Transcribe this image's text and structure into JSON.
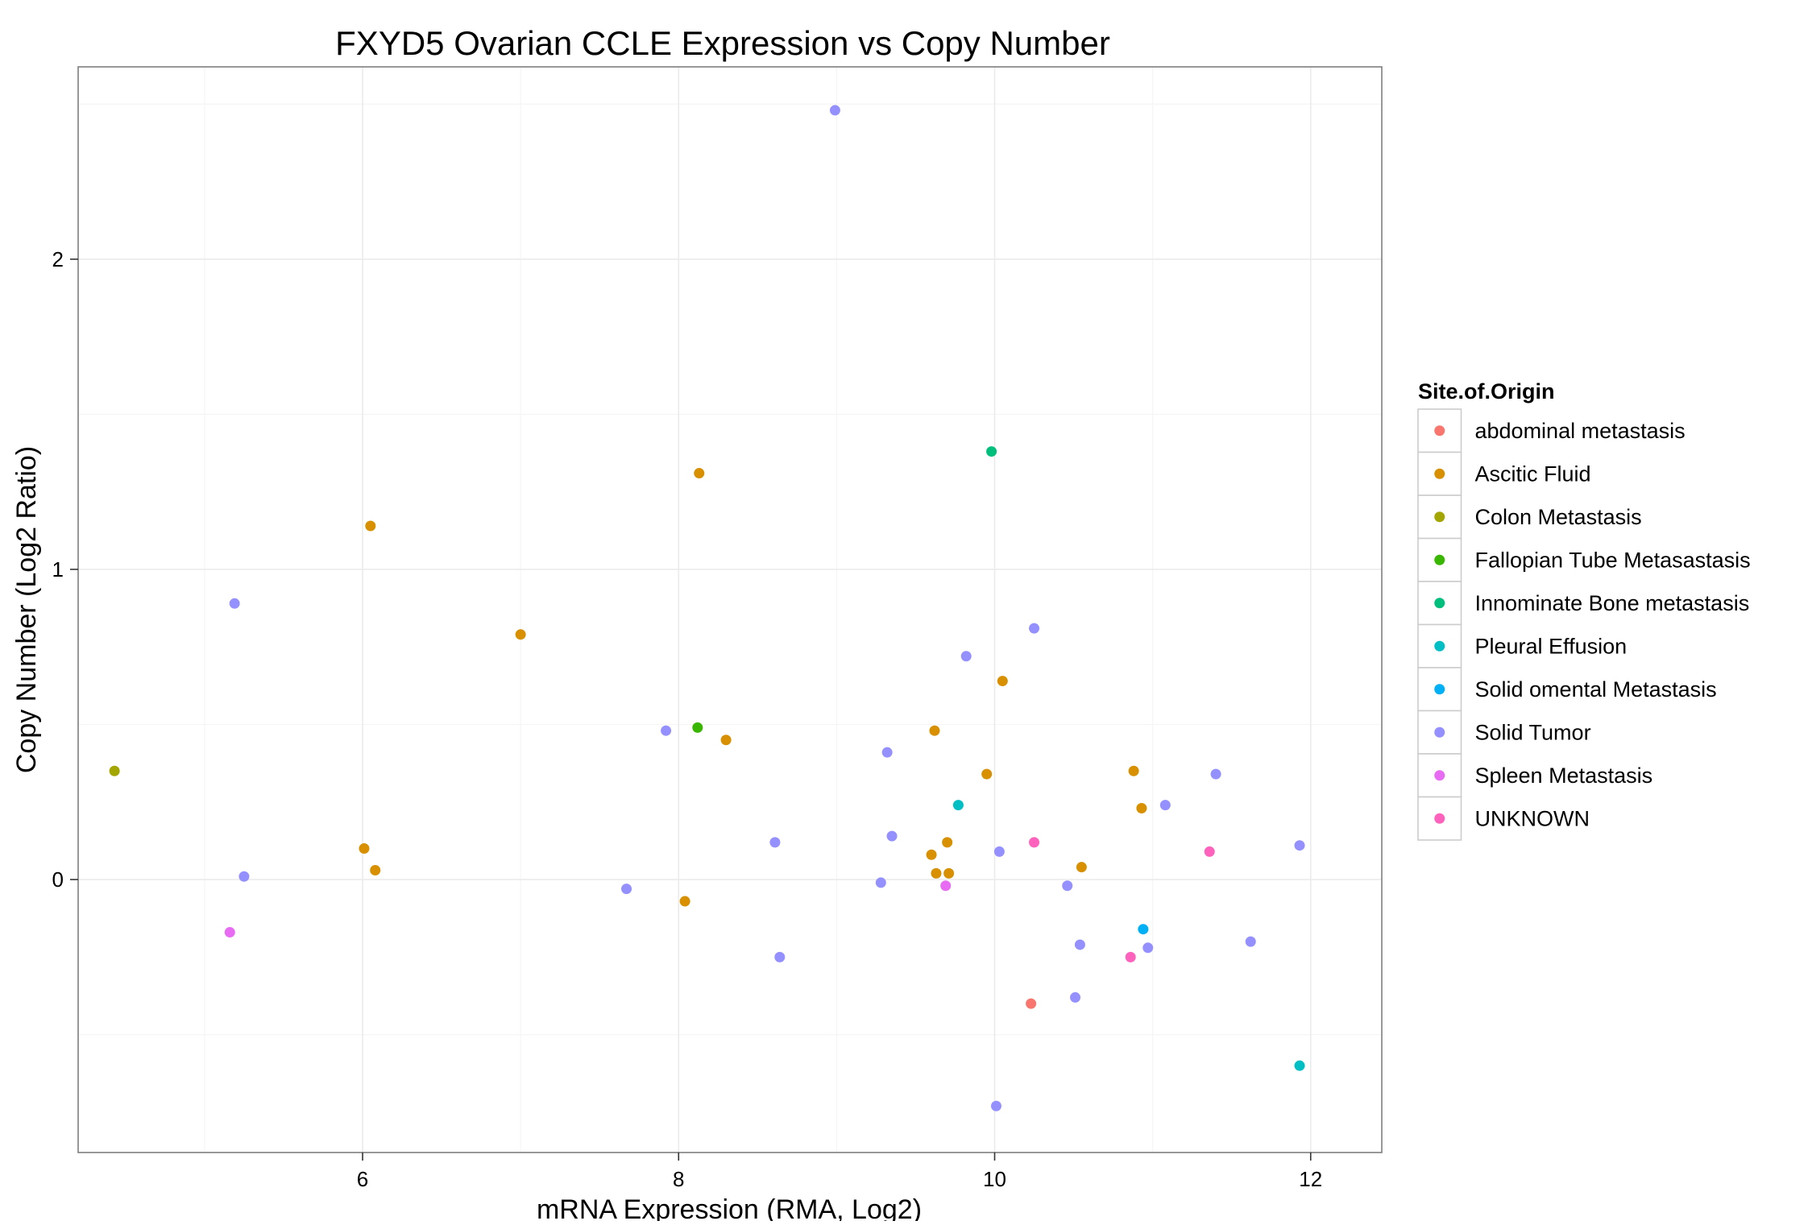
{
  "chart_data": {
    "type": "scatter",
    "title": "FXYD5 Ovarian CCLE Expression vs Copy Number",
    "xlabel": "mRNA Expression (RMA, Log2)",
    "ylabel": "Copy Number (Log2 Ratio)",
    "xlim": [
      4.2,
      12.45
    ],
    "ylim": [
      -0.88,
      2.62
    ],
    "x_ticks": [
      6,
      8,
      10,
      12
    ],
    "y_ticks": [
      0,
      1,
      2
    ],
    "grid": true,
    "legend": {
      "title": "Site.of.Origin",
      "placement": "right"
    },
    "series": [
      {
        "name": "abdominal metastasis",
        "color": "#F8766D",
        "points": [
          [
            10.23,
            -0.4
          ]
        ]
      },
      {
        "name": "Ascitic Fluid",
        "color": "#D89000",
        "points": [
          [
            8.13,
            1.31
          ],
          [
            6.05,
            1.14
          ],
          [
            7.0,
            0.79
          ],
          [
            10.05,
            0.64
          ],
          [
            9.62,
            0.48
          ],
          [
            8.3,
            0.45
          ],
          [
            9.95,
            0.34
          ],
          [
            10.88,
            0.35
          ],
          [
            10.93,
            0.23
          ],
          [
            6.01,
            0.1
          ],
          [
            9.7,
            0.12
          ],
          [
            9.6,
            0.08
          ],
          [
            6.08,
            0.03
          ],
          [
            9.63,
            0.02
          ],
          [
            9.71,
            0.02
          ],
          [
            10.55,
            0.04
          ],
          [
            8.04,
            -0.07
          ]
        ]
      },
      {
        "name": "Colon Metastasis",
        "color": "#A3A500",
        "points": [
          [
            4.43,
            0.35
          ]
        ]
      },
      {
        "name": "Fallopian Tube Metasastasis",
        "color": "#39B600",
        "points": [
          [
            8.12,
            0.49
          ]
        ]
      },
      {
        "name": "Innominate Bone metastasis",
        "color": "#00BF7D",
        "points": [
          [
            9.98,
            1.38
          ]
        ]
      },
      {
        "name": "Pleural Effusion",
        "color": "#00BFC4",
        "points": [
          [
            9.77,
            0.24
          ],
          [
            11.93,
            -0.6
          ]
        ]
      },
      {
        "name": "Solid omental Metastasis",
        "color": "#00B0F6",
        "points": [
          [
            10.94,
            -0.16
          ]
        ]
      },
      {
        "name": "Solid Tumor",
        "color": "#9590FF",
        "points": [
          [
            8.99,
            2.48
          ],
          [
            5.19,
            0.89
          ],
          [
            10.25,
            0.81
          ],
          [
            9.82,
            0.72
          ],
          [
            7.92,
            0.48
          ],
          [
            9.32,
            0.41
          ],
          [
            11.4,
            0.34
          ],
          [
            11.08,
            0.24
          ],
          [
            8.61,
            0.12
          ],
          [
            9.35,
            0.14
          ],
          [
            11.93,
            0.11
          ],
          [
            10.03,
            0.09
          ],
          [
            5.25,
            0.01
          ],
          [
            7.67,
            -0.03
          ],
          [
            9.28,
            -0.01
          ],
          [
            10.46,
            -0.02
          ],
          [
            10.54,
            -0.21
          ],
          [
            10.97,
            -0.22
          ],
          [
            11.62,
            -0.2
          ],
          [
            8.64,
            -0.25
          ],
          [
            10.51,
            -0.38
          ],
          [
            10.01,
            -0.73
          ]
        ]
      },
      {
        "name": "Spleen Metastasis",
        "color": "#E76BF3",
        "points": [
          [
            5.16,
            -0.17
          ],
          [
            9.69,
            -0.02
          ]
        ]
      },
      {
        "name": "UNKNOWN",
        "color": "#FF62BC",
        "points": [
          [
            10.25,
            0.12
          ],
          [
            11.36,
            0.09
          ],
          [
            10.86,
            -0.25
          ]
        ]
      }
    ]
  }
}
